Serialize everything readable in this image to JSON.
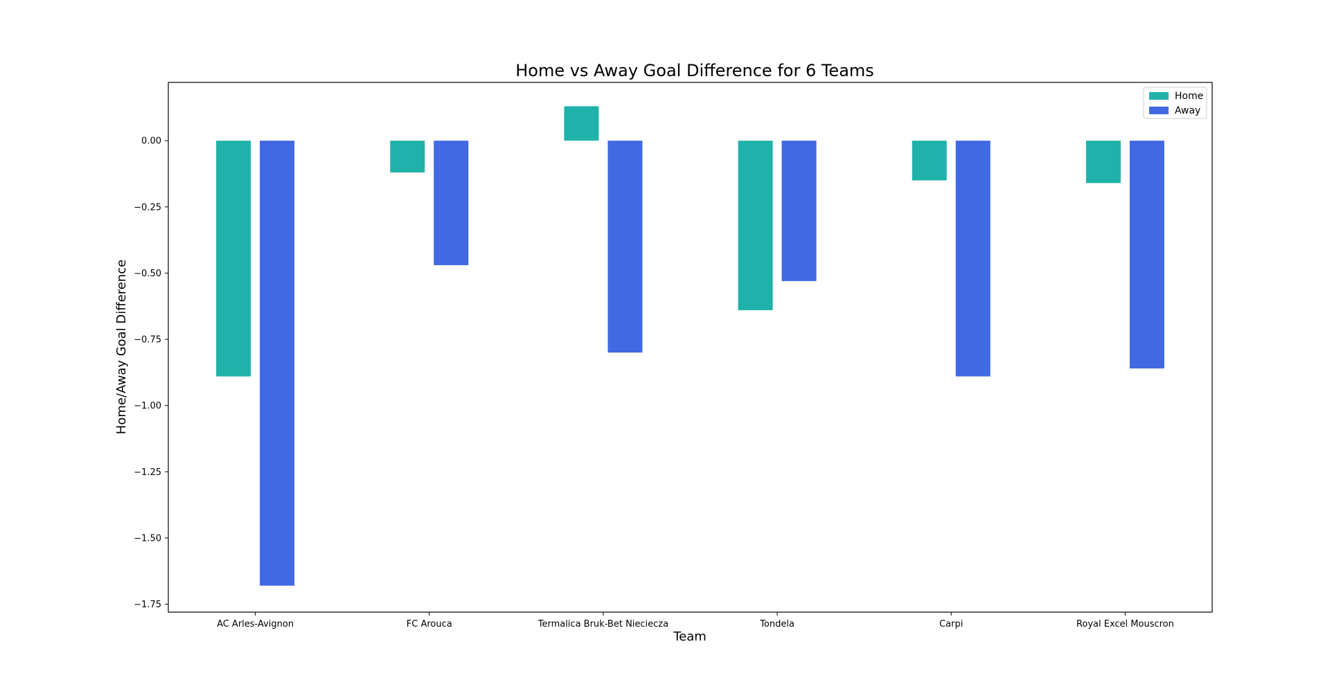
{
  "chart_data": {
    "type": "bar",
    "title": "Home vs Away Goal Difference for 6 Teams",
    "xlabel": "Team",
    "ylabel": "Home/Away Goal Difference",
    "categories": [
      "AC Arles-Avignon",
      "FC Arouca",
      "Termalica Bruk-Bet Nieciecza",
      "Tondela",
      "Carpi",
      "Royal Excel Mouscron"
    ],
    "series": [
      {
        "name": "Home",
        "color": "#20b2aa",
        "values": [
          -0.89,
          -0.12,
          0.13,
          -0.64,
          -0.15,
          -0.16
        ]
      },
      {
        "name": "Away",
        "color": "#4169e1",
        "values": [
          -1.68,
          -0.47,
          -0.8,
          -0.53,
          -0.89,
          -0.86
        ]
      }
    ],
    "ylim": [
      -1.78,
      0.22
    ],
    "yticks": [
      0.0,
      -0.25,
      -0.5,
      -0.75,
      -1.0,
      -1.25,
      -1.5,
      -1.75
    ],
    "ytick_labels": [
      "0.00",
      "−0.25",
      "−0.50",
      "−0.75",
      "−1.00",
      "−1.25",
      "−1.50",
      "−1.75"
    ],
    "legend_position": "top-right",
    "grid": false
  }
}
